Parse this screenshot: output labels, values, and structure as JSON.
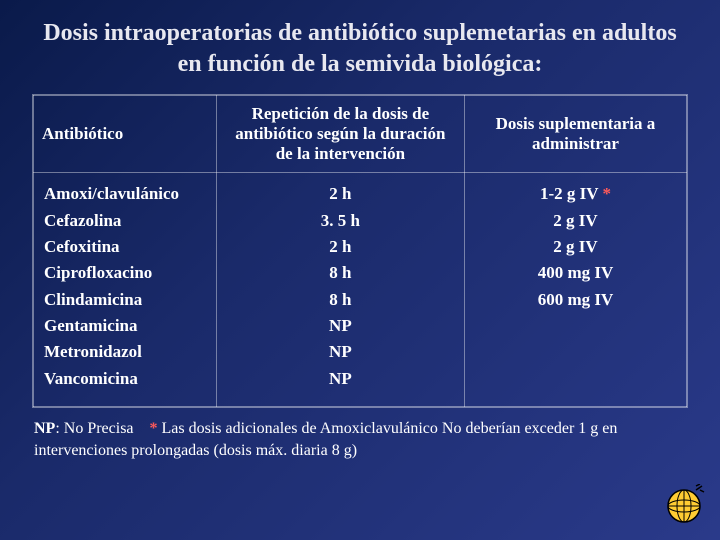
{
  "title": "Dosis intraoperatorias de antibiótico suplemetarias en adultos en función de la semivida biológica:",
  "table": {
    "headers": {
      "antibiotic": "Antibiótico",
      "repetition": "Repetición de la dosis de antibiótico según la duración de la intervención",
      "supplementary": "Dosis suplementaria a administrar"
    },
    "rows": [
      {
        "name": "Amoxi/clavulánico",
        "rep": "2 h",
        "dose": "1-2 g IV",
        "asterisk": true
      },
      {
        "name": "Cefazolina",
        "rep": "3. 5 h",
        "dose": "2 g IV",
        "asterisk": false
      },
      {
        "name": "Cefoxitina",
        "rep": "2 h",
        "dose": "2 g IV",
        "asterisk": false
      },
      {
        "name": "Ciprofloxacino",
        "rep": "8 h",
        "dose": "400 mg IV",
        "asterisk": false
      },
      {
        "name": "Clindamicina",
        "rep": "8 h",
        "dose": "600 mg IV",
        "asterisk": false
      },
      {
        "name": "Gentamicina",
        "rep": "NP",
        "dose": "",
        "asterisk": false
      },
      {
        "name": "Metronidazol",
        "rep": "NP",
        "dose": "",
        "asterisk": false
      },
      {
        "name": "Vancomicina",
        "rep": "NP",
        "dose": "",
        "asterisk": false
      }
    ]
  },
  "footnote": {
    "np_label": "NP",
    "np_text": ": No Precisa",
    "ast": "*",
    "ast_text": " Las dosis adicionales de Amoxiclavulánico No deberían exceder 1 g en intervenciones prolongadas (dosis máx. diaria 8 g)"
  },
  "colors": {
    "bg_start": "#0a1a4a",
    "bg_end": "#2a3a8a",
    "text": "#ffffff",
    "border": "rgba(255,255,255,0.4)",
    "asterisk": "#ff5a5a",
    "globe_fill": "#ffcc33",
    "globe_stroke": "#000000"
  }
}
